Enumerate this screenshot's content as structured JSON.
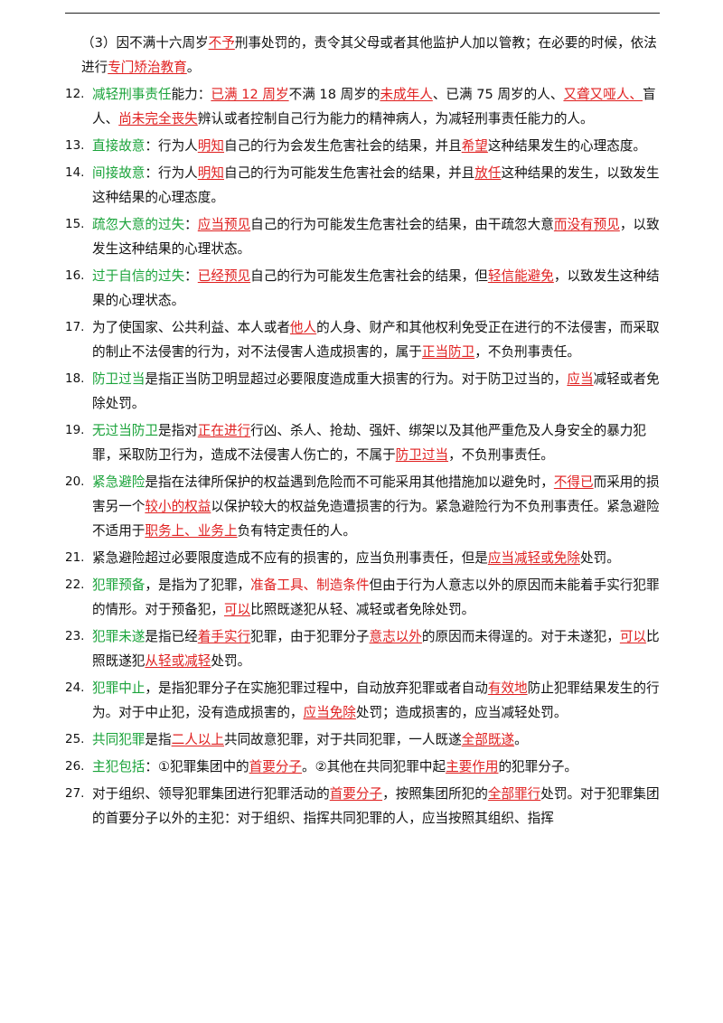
{
  "intro": [
    {
      "t": "（3）因不满十六周岁",
      "s": "n"
    },
    {
      "t": "不予",
      "s": "r"
    },
    {
      "t": "刑事处罚的，责令其父母或者其他监护人加以管教；在必要的时候，依法进行",
      "s": "n"
    },
    {
      "t": "专门矫治教育",
      "s": "r"
    },
    {
      "t": "。",
      "s": "n"
    }
  ],
  "items": [
    {
      "num": "12.",
      "segs": [
        {
          "t": "减轻刑事责任",
          "s": "g"
        },
        {
          "t": "能力：",
          "s": "n"
        },
        {
          "t": "已满 12 周岁",
          "s": "r"
        },
        {
          "t": "不满 18 周岁的",
          "s": "n"
        },
        {
          "t": "未成年人",
          "s": "r"
        },
        {
          "t": "、已满 75 周岁的人、",
          "s": "n"
        },
        {
          "t": "又聋又哑人、",
          "s": "r"
        },
        {
          "t": "盲人、",
          "s": "n"
        },
        {
          "t": "尚未完全丧失",
          "s": "r"
        },
        {
          "t": "辨认或者控制自己行为能力的精神病人，为减轻刑事责任能力的人。",
          "s": "n"
        }
      ]
    },
    {
      "num": "13.",
      "segs": [
        {
          "t": "直接故意",
          "s": "g"
        },
        {
          "t": "：行为人",
          "s": "n"
        },
        {
          "t": "明知",
          "s": "r"
        },
        {
          "t": "自己的行为会发生危害社会的结果，并且",
          "s": "n"
        },
        {
          "t": "希望",
          "s": "r"
        },
        {
          "t": "这种结果发生的心理态度。",
          "s": "n"
        }
      ]
    },
    {
      "num": "14.",
      "segs": [
        {
          "t": "间接故意",
          "s": "g"
        },
        {
          "t": "：行为人",
          "s": "n"
        },
        {
          "t": "明知",
          "s": "r"
        },
        {
          "t": "自己的行为可能发生危害社会的结果，并且",
          "s": "n"
        },
        {
          "t": "放任",
          "s": "r"
        },
        {
          "t": "这种结果的发生，以致发生这种结果的心理态度。",
          "s": "n"
        }
      ]
    },
    {
      "num": "15.",
      "segs": [
        {
          "t": "疏忽大意的过失",
          "s": "g"
        },
        {
          "t": "：",
          "s": "n"
        },
        {
          "t": "应当预见",
          "s": "r"
        },
        {
          "t": "自己的行为可能发生危害社会的结果，由干疏忽大意",
          "s": "n"
        },
        {
          "t": "而没有预见",
          "s": "r"
        },
        {
          "t": "，以致发生这种结果的心理状态。",
          "s": "n"
        }
      ]
    },
    {
      "num": "16.",
      "segs": [
        {
          "t": "过于自信的过失",
          "s": "g"
        },
        {
          "t": "：",
          "s": "n"
        },
        {
          "t": "已经预见",
          "s": "r"
        },
        {
          "t": "自己的行为可能发生危害社会的结果，但",
          "s": "n"
        },
        {
          "t": "轻信能避免",
          "s": "r"
        },
        {
          "t": "，以致发生这种结果的心理状态。",
          "s": "n"
        }
      ]
    },
    {
      "num": "17.",
      "segs": [
        {
          "t": "为了使国家、公共利益、本人或者",
          "s": "n"
        },
        {
          "t": "他人",
          "s": "r"
        },
        {
          "t": "的人身、财产和其他权利免受正在进行的不法侵害，而采取的制止不法侵害的行为，对不法侵害人造成损害的，属于",
          "s": "n"
        },
        {
          "t": "正当防卫",
          "s": "r"
        },
        {
          "t": "，不负刑事责任。",
          "s": "n"
        }
      ]
    },
    {
      "num": "18.",
      "segs": [
        {
          "t": "防卫过当",
          "s": "g"
        },
        {
          "t": "是指正当防卫明显超过必要限度造成重大损害的行为。对于防卫过当的，",
          "s": "n"
        },
        {
          "t": "应当",
          "s": "r"
        },
        {
          "t": "减轻或者免除处罚。",
          "s": "n"
        }
      ]
    },
    {
      "num": "19.",
      "segs": [
        {
          "t": "无过当防卫",
          "s": "g"
        },
        {
          "t": "是指对",
          "s": "n"
        },
        {
          "t": "正在进行",
          "s": "r"
        },
        {
          "t": "行凶、杀人、抢劫、强奸、绑架以及其他严重危及人身安全的暴力犯罪，采取防卫行为，造成不法侵害人伤亡的，不属于",
          "s": "n"
        },
        {
          "t": "防卫过当",
          "s": "r"
        },
        {
          "t": "，不负刑事责任。",
          "s": "n"
        }
      ]
    },
    {
      "num": "20.",
      "segs": [
        {
          "t": "紧急避险",
          "s": "g"
        },
        {
          "t": "是指在法律所保护的权益遇到危险而不可能采用其他措施加以避免时，",
          "s": "n"
        },
        {
          "t": "不得已",
          "s": "r"
        },
        {
          "t": "而采用的损害另一个",
          "s": "n"
        },
        {
          "t": "较小的权益",
          "s": "r"
        },
        {
          "t": "以保护较大的权益免造遭损害的行为。紧急避险行为不负刑事责任。紧急避险不适用于",
          "s": "n"
        },
        {
          "t": "职务上、业务上",
          "s": "r"
        },
        {
          "t": "负有特定责任的人。",
          "s": "n"
        }
      ]
    },
    {
      "num": "21.",
      "segs": [
        {
          "t": "紧急避险超过必要限度造成不应有的损害的，应当负刑事责任，但是",
          "s": "n"
        },
        {
          "t": "应当减轻或免除",
          "s": "r"
        },
        {
          "t": "处罚。",
          "s": "n"
        }
      ]
    },
    {
      "num": "22.",
      "segs": [
        {
          "t": "犯罪预备",
          "s": "g"
        },
        {
          "t": "，是指为了犯罪，",
          "s": "n"
        },
        {
          "t": "准备工具、制造条件",
          "s": "rs"
        },
        {
          "t": "但由于行为人意志以外的原因而未能着手实行犯罪的情形。对于预备犯，",
          "s": "n"
        },
        {
          "t": "可以",
          "s": "r"
        },
        {
          "t": "比照既遂犯从轻、减轻或者免除处罚。",
          "s": "n"
        }
      ]
    },
    {
      "num": "23.",
      "segs": [
        {
          "t": "犯罪未遂",
          "s": "g"
        },
        {
          "t": "是指已经",
          "s": "n"
        },
        {
          "t": "着手实行",
          "s": "r"
        },
        {
          "t": "犯罪，由于犯罪分子",
          "s": "n"
        },
        {
          "t": "意志以外",
          "s": "r"
        },
        {
          "t": "的原因而未得逞的。对于未遂犯，",
          "s": "n"
        },
        {
          "t": "可以",
          "s": "r"
        },
        {
          "t": "比照既遂犯",
          "s": "n"
        },
        {
          "t": "从轻或减轻",
          "s": "r"
        },
        {
          "t": "处罚。",
          "s": "n"
        }
      ]
    },
    {
      "num": "24.",
      "segs": [
        {
          "t": "犯罪中止",
          "s": "g"
        },
        {
          "t": "，是指犯罪分子在实施犯罪过程中，自动放弃犯罪或者自动",
          "s": "n"
        },
        {
          "t": "有效地",
          "s": "r"
        },
        {
          "t": "防止犯罪结果发生的行为。对于中止犯，没有造成损害的，",
          "s": "n"
        },
        {
          "t": "应当免除",
          "s": "r"
        },
        {
          "t": "处罚；造成损害的，应当减轻处罚。",
          "s": "n"
        }
      ]
    },
    {
      "num": "25.",
      "segs": [
        {
          "t": "共同犯罪",
          "s": "g"
        },
        {
          "t": "是指",
          "s": "n"
        },
        {
          "t": "二人以上",
          "s": "r"
        },
        {
          "t": "共同故意犯罪，对于共同犯罪，一人既遂",
          "s": "n"
        },
        {
          "t": "全部既遂",
          "s": "r"
        },
        {
          "t": "。",
          "s": "n"
        }
      ]
    },
    {
      "num": "26.",
      "segs": [
        {
          "t": "主犯包括",
          "s": "g"
        },
        {
          "t": "：①犯罪集团中的",
          "s": "n"
        },
        {
          "t": "首要分子",
          "s": "r"
        },
        {
          "t": "。②其他在共同犯罪中起",
          "s": "n"
        },
        {
          "t": "主要作用",
          "s": "r"
        },
        {
          "t": "的犯罪分子。",
          "s": "n"
        }
      ]
    },
    {
      "num": "27.",
      "segs": [
        {
          "t": "对于组织、领导犯罪集团进行犯罪活动的",
          "s": "n"
        },
        {
          "t": "首要分子",
          "s": "r"
        },
        {
          "t": "，按照集团所犯的",
          "s": "n"
        },
        {
          "t": "全部罪行",
          "s": "r"
        },
        {
          "t": "处罚。对于犯罪集团的首要分子以外的主犯：对于组织、指挥共同犯罪的人，应当按照其组织、指挥",
          "s": "n"
        }
      ]
    }
  ]
}
